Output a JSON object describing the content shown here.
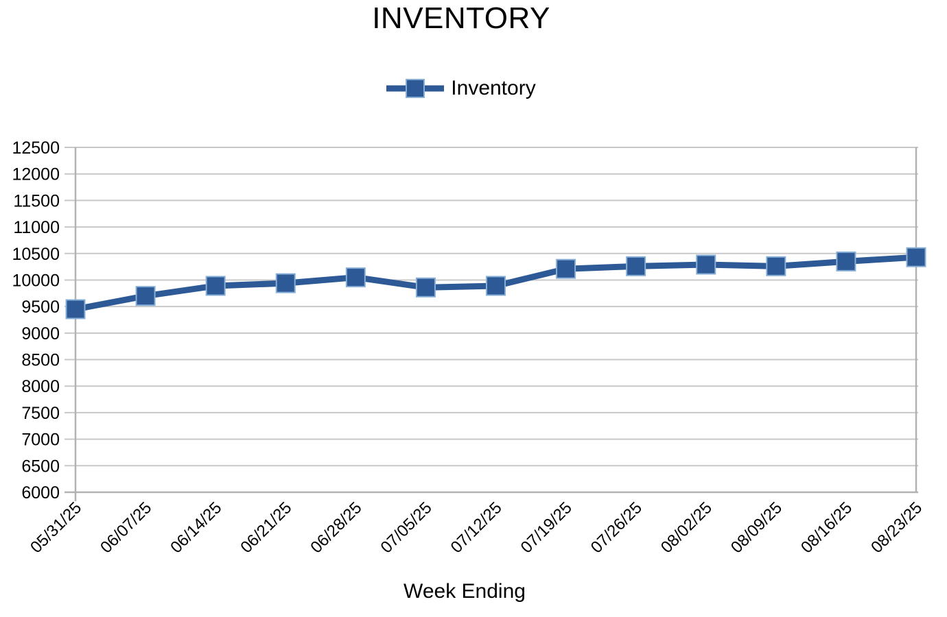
{
  "title": "INVENTORY",
  "legend": {
    "label": "Inventory"
  },
  "chart_data": {
    "type": "line",
    "title": "INVENTORY",
    "xlabel": "Week Ending",
    "ylabel": "",
    "categories": [
      "05/31/25",
      "06/07/25",
      "06/14/25",
      "06/21/25",
      "06/28/25",
      "07/05/25",
      "07/12/25",
      "07/19/25",
      "07/26/25",
      "08/02/25",
      "08/09/25",
      "08/16/25",
      "08/23/25"
    ],
    "series": [
      {
        "name": "Inventory",
        "values": [
          9450,
          9700,
          9890,
          9940,
          10050,
          9860,
          9890,
          10210,
          10260,
          10290,
          10260,
          10350,
          10430
        ]
      }
    ],
    "ylim": [
      6000,
      12500
    ],
    "ytick_step": 500,
    "grid": true,
    "legend_position": "top",
    "marker": "square",
    "colors": {
      "series": "#2d5a96",
      "marker_edge": "#87aed6",
      "gridline": "#c8c8c8",
      "axis": "#b2b2b2",
      "text": "#000000"
    }
  }
}
